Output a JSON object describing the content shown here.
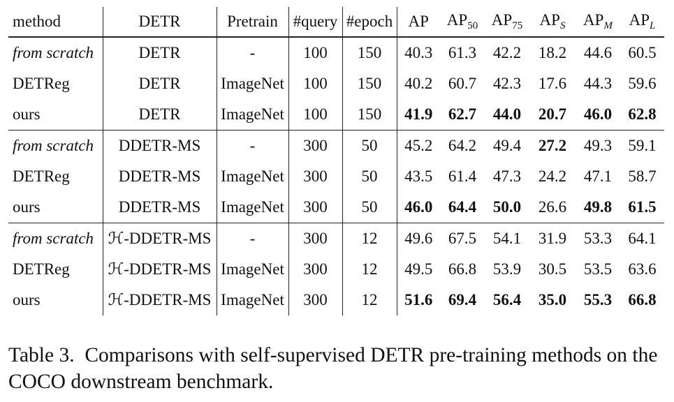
{
  "table": {
    "header": [
      {
        "text": "method"
      },
      {
        "text": "DETR"
      },
      {
        "text": "Pretrain"
      },
      {
        "text": "#query"
      },
      {
        "text": "#epoch"
      },
      {
        "text": "AP"
      },
      {
        "text": "AP",
        "sub": "50"
      },
      {
        "text": "AP",
        "sub": "75"
      },
      {
        "text": "AP",
        "sub": "S"
      },
      {
        "text": "AP",
        "sub": "M"
      },
      {
        "text": "AP",
        "sub": "L"
      }
    ],
    "groups": [
      {
        "rows": [
          {
            "cells": [
              "from scratch",
              "DETR",
              "-",
              "100",
              "150",
              "40.3",
              "61.3",
              "42.2",
              "18.2",
              "44.6",
              "60.5"
            ],
            "italic": [
              0
            ],
            "bold": []
          },
          {
            "cells": [
              "DETReg",
              "DETR",
              "ImageNet",
              "100",
              "150",
              "40.2",
              "60.7",
              "42.3",
              "17.6",
              "44.3",
              "59.6"
            ],
            "italic": [],
            "bold": []
          },
          {
            "cells": [
              "ours",
              "DETR",
              "ImageNet",
              "100",
              "150",
              "41.9",
              "62.7",
              "44.0",
              "20.7",
              "46.0",
              "62.8"
            ],
            "italic": [],
            "bold": [
              5,
              6,
              7,
              8,
              9,
              10
            ]
          }
        ]
      },
      {
        "rows": [
          {
            "cells": [
              "from scratch",
              "DDETR-MS",
              "-",
              "300",
              "50",
              "45.2",
              "64.2",
              "49.4",
              "27.2",
              "49.3",
              "59.1"
            ],
            "italic": [
              0
            ],
            "bold": [
              8
            ]
          },
          {
            "cells": [
              "DETReg",
              "DDETR-MS",
              "ImageNet",
              "300",
              "50",
              "43.5",
              "61.4",
              "47.3",
              "24.2",
              "47.1",
              "58.7"
            ],
            "italic": [],
            "bold": []
          },
          {
            "cells": [
              "ours",
              "DDETR-MS",
              "ImageNet",
              "300",
              "50",
              "46.0",
              "64.4",
              "50.0",
              "26.6",
              "49.8",
              "61.5"
            ],
            "italic": [],
            "bold": [
              5,
              6,
              7,
              9,
              10
            ]
          }
        ]
      },
      {
        "rows": [
          {
            "cells": [
              "from scratch",
              "ℋ-DDETR-MS",
              "-",
              "300",
              "12",
              "49.6",
              "67.5",
              "54.1",
              "31.9",
              "53.3",
              "64.1"
            ],
            "italic": [
              0
            ],
            "bold": []
          },
          {
            "cells": [
              "DETReg",
              "ℋ-DDETR-MS",
              "ImageNet",
              "300",
              "12",
              "49.5",
              "66.8",
              "53.9",
              "30.5",
              "53.5",
              "63.6"
            ],
            "italic": [],
            "bold": []
          },
          {
            "cells": [
              "ours",
              "ℋ-DDETR-MS",
              "ImageNet",
              "300",
              "12",
              "51.6",
              "69.4",
              "56.4",
              "35.0",
              "55.3",
              "66.8"
            ],
            "italic": [],
            "bold": [
              5,
              6,
              7,
              8,
              9,
              10
            ]
          }
        ]
      }
    ]
  },
  "caption": {
    "label": "Table 3.",
    "text": "Comparisons with self-supervised DETR pre-training methods on the COCO downstream benchmark."
  }
}
